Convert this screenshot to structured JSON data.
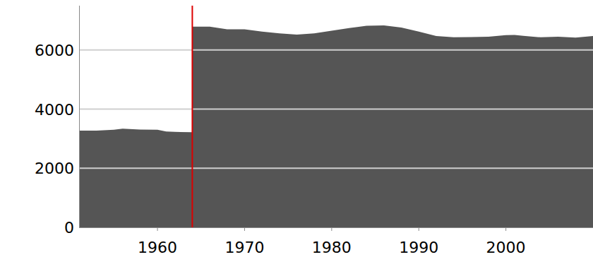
{
  "chart_data": {
    "type": "area",
    "x": [
      1951,
      1953,
      1955,
      1956,
      1958,
      1960,
      1961,
      1962,
      1964,
      1964,
      1966,
      1968,
      1970,
      1972,
      1974,
      1976,
      1978,
      1980,
      1982,
      1984,
      1986,
      1988,
      1990,
      1992,
      1994,
      1996,
      1998,
      2000,
      2001,
      2002,
      2004,
      2006,
      2008,
      2010
    ],
    "values": [
      3270,
      3270,
      3300,
      3340,
      3310,
      3300,
      3240,
      3230,
      3220,
      6790,
      6790,
      6700,
      6700,
      6620,
      6560,
      6520,
      6560,
      6650,
      6740,
      6820,
      6830,
      6760,
      6620,
      6470,
      6430,
      6440,
      6450,
      6500,
      6510,
      6480,
      6430,
      6450,
      6420,
      6470
    ],
    "color": "#555555",
    "vline": {
      "x": 1964,
      "color": "#dd0000"
    },
    "xlim": [
      1951,
      2010
    ],
    "xticks": [
      1960,
      1970,
      1980,
      1990,
      2000
    ],
    "ylim": [
      0,
      7500
    ],
    "yticks": [
      0,
      2000,
      4000,
      6000
    ],
    "grid": true
  }
}
